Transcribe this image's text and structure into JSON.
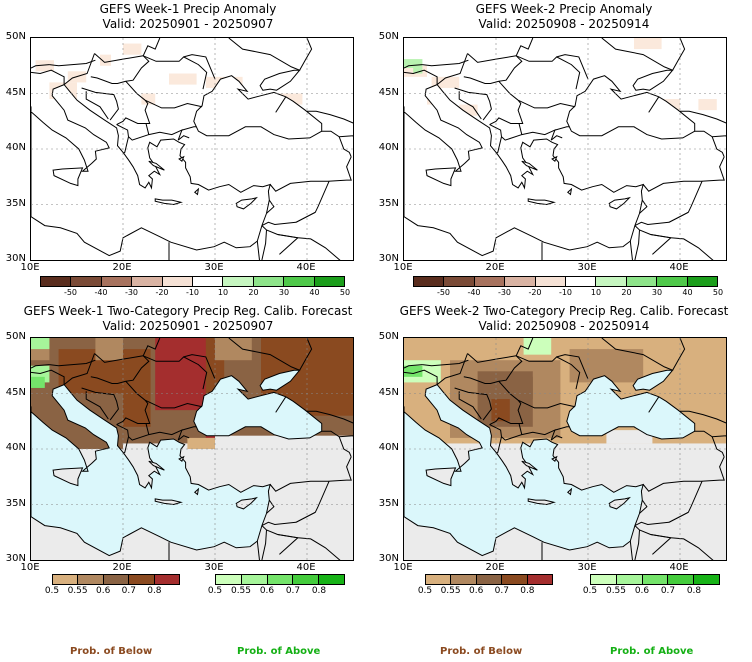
{
  "panels": [
    {
      "title": "GEFS Week-1 Precip Anomaly",
      "valid": "Valid: 20250901 - 20250907"
    },
    {
      "title": "GEFS Week-2 Precip Anomaly",
      "valid": "Valid: 20250908 - 20250914"
    },
    {
      "title": "GEFS Week-1 Two-Category Precip Reg. Calib. Forecast",
      "valid": "Valid: 20250901 - 20250907"
    },
    {
      "title": "GEFS Week-2 Two-Category Precip Reg. Calib. Forecast",
      "valid": "Valid: 20250908 - 20250914"
    }
  ],
  "axes": {
    "lat": [
      "50N",
      "45N",
      "40N",
      "35N",
      "30N"
    ],
    "lon": [
      "10E",
      "20E",
      "30E",
      "40E"
    ]
  },
  "anomaly_colorbar": {
    "labels": [
      "-50",
      "-40",
      "-30",
      "-20",
      "-10",
      "10",
      "20",
      "30",
      "40",
      "50"
    ],
    "colors": [
      "#5a2d1e",
      "#7a4a36",
      "#a7725e",
      "#d9b3a3",
      "#f5e1d5",
      "#ffffff",
      "#c6f6c0",
      "#8ee48a",
      "#4fc94a",
      "#1b9e1b"
    ]
  },
  "below_colorbar": {
    "labels": [
      "0.5",
      "0.55",
      "0.6",
      "0.7",
      "0.8"
    ],
    "colors": [
      "#d8b07e",
      "#b08860",
      "#8a6344",
      "#8a4a20",
      "#a42e2e"
    ]
  },
  "above_colorbar": {
    "labels": [
      "0.5",
      "0.55",
      "0.6",
      "0.7",
      "0.8"
    ],
    "colors": [
      "#ccffbb",
      "#a6f59a",
      "#74e46a",
      "#44cc3c",
      "#17b317"
    ]
  },
  "footer": {
    "below": "Prob. of Below",
    "above": "Prob. of Above"
  },
  "colors": {
    "sea": "#dbf7fb",
    "no_signal": "#ebebeb",
    "below_text": "#8b4a20",
    "above_text": "#15b015"
  }
}
